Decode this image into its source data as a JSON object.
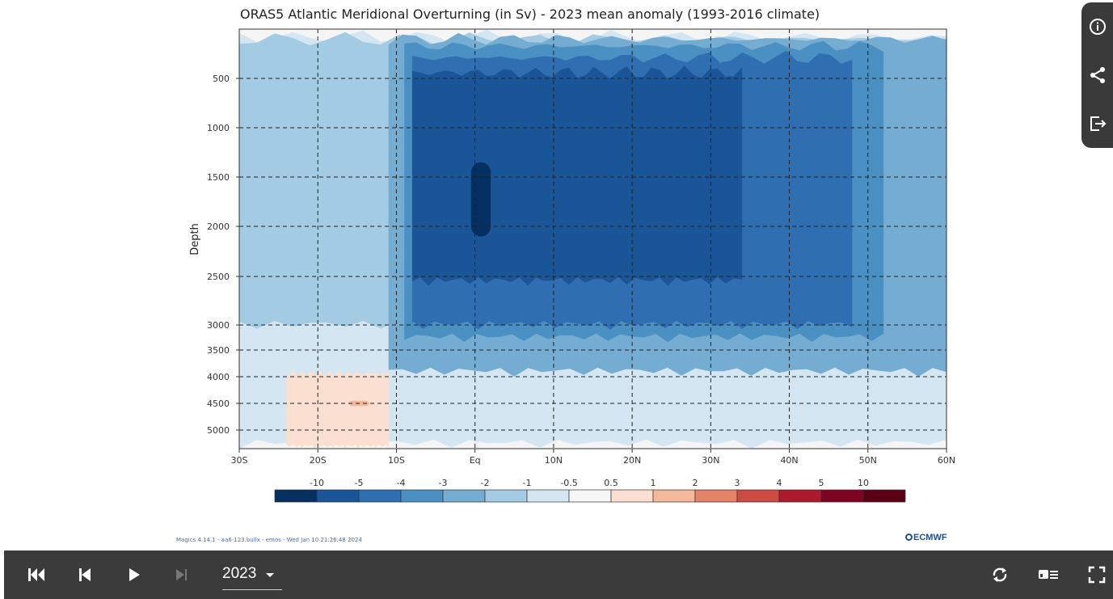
{
  "figure": {
    "title": "ORAS5 Atlantic Meridional Overturning (in Sv) - 2023 mean anomaly (1993-2016 climate)",
    "footer": "Magics 4.14.1 - aa6-123.bullx - emos - Wed Jan 10 21:26:48 2024",
    "logo_text": "ECMWF"
  },
  "chart_data": {
    "type": "heatmap",
    "title": "ORAS5 Atlantic Meridional Overturning (in Sv) - 2023 mean anomaly (1993-2016 climate)",
    "xlabel": "",
    "ylabel": "Depth",
    "x_ticks": [
      "30S",
      "20S",
      "10S",
      "Eq",
      "10N",
      "20N",
      "30N",
      "40N",
      "50N",
      "60N"
    ],
    "x_values": [
      -30,
      -20,
      -10,
      0,
      10,
      20,
      30,
      40,
      50,
      60
    ],
    "xlim": [
      -30,
      60
    ],
    "y_ticks": [
      500,
      1000,
      1500,
      2000,
      2500,
      3000,
      3500,
      4000,
      4500,
      5000
    ],
    "ylim": [
      0,
      5200
    ],
    "y_inverted": true,
    "grid": true,
    "colorbar": {
      "labels": [
        "-10",
        "-5",
        "-4",
        "-3",
        "-2",
        "-1",
        "-0.5",
        "0.5",
        "1",
        "2",
        "3",
        "4",
        "5",
        "10"
      ],
      "colors": [
        "#053061",
        "#1a5597",
        "#2f6fb1",
        "#4a90c2",
        "#74acd2",
        "#a3cbe3",
        "#d4e6f2",
        "#f7f7f7",
        "#fbdfd0",
        "#f5b89a",
        "#e58367",
        "#cc4c43",
        "#ac1a2c",
        "#7e0522",
        "#5a0015"
      ]
    },
    "regions": [
      {
        "level": "-0.5",
        "lat": [
          -30,
          60
        ],
        "depth": [
          40,
          5200
        ]
      },
      {
        "level": "-1",
        "lat": [
          -30,
          60
        ],
        "depth": [
          60,
          3100
        ]
      },
      {
        "level": "-2",
        "lat": [
          -11,
          60
        ],
        "depth": [
          60,
          4000
        ]
      },
      {
        "level": "-3",
        "lat": [
          -9,
          52
        ],
        "depth": [
          130,
          3350
        ]
      },
      {
        "level": "-4",
        "lat": [
          -8,
          48
        ],
        "depth": [
          250,
          3100
        ]
      },
      {
        "level": "-5",
        "lat": [
          -8,
          34
        ],
        "depth": [
          400,
          2600
        ]
      },
      {
        "level": "-10",
        "lat": [
          -0.5,
          2
        ],
        "depth": [
          1350,
          2100
        ]
      },
      {
        "level": "0.5",
        "lat": [
          -24,
          -11
        ],
        "depth": [
          3900,
          5200
        ]
      },
      {
        "level": "1",
        "lat": [
          -16,
          -13.5
        ],
        "depth": [
          4450,
          4550
        ]
      }
    ]
  },
  "side_toolbar": {
    "info_icon": "info-icon",
    "share_icon": "share-icon",
    "export_icon": "export-icon"
  },
  "controls": {
    "year": "2023",
    "icons": [
      "first-frame-icon",
      "previous-frame-icon",
      "play-icon",
      "next-frame-icon",
      "loop-icon",
      "caption-icon",
      "fullscreen-icon"
    ]
  }
}
